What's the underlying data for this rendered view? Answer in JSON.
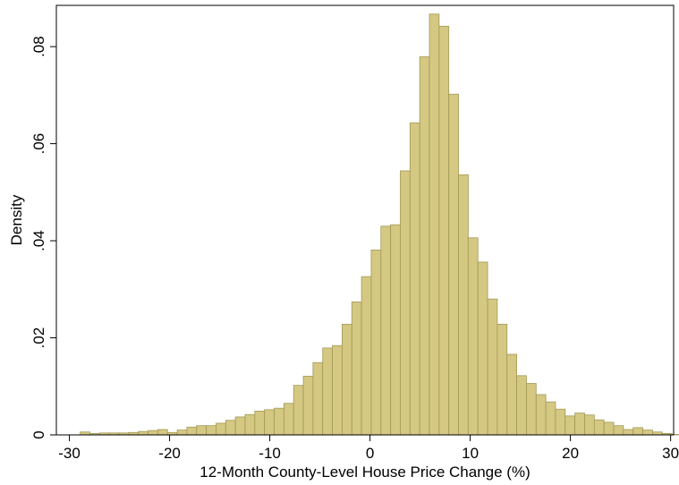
{
  "chart_data": {
    "type": "bar",
    "subtype": "histogram",
    "xlabel": "12-Month County-Level House Price Change (%)",
    "ylabel": "Density",
    "xlim": [
      -31.3,
      30.3
    ],
    "ylim": [
      0,
      0.0885
    ],
    "x_ticks": [
      -30,
      -20,
      -10,
      0,
      10,
      20,
      30
    ],
    "x_tick_labels": [
      "-30",
      "-20",
      "-10",
      "0",
      "10",
      "20",
      "30"
    ],
    "y_ticks": [
      0,
      0.02,
      0.04,
      0.06,
      0.08
    ],
    "y_tick_labels": [
      "0",
      ".02",
      ".04",
      ".06",
      ".08"
    ],
    "grid": false,
    "legend": "none",
    "bin_start": -28.92,
    "bin_width": 0.968,
    "values": [
      0.0006,
      0.0003,
      0.0004,
      0.0004,
      0.0004,
      0.0005,
      0.0007,
      0.0009,
      0.0011,
      0.0005,
      0.001,
      0.0016,
      0.0019,
      0.0019,
      0.0024,
      0.003,
      0.0037,
      0.0042,
      0.0049,
      0.0052,
      0.0055,
      0.0065,
      0.0102,
      0.0121,
      0.0149,
      0.0179,
      0.0184,
      0.0228,
      0.0274,
      0.0326,
      0.0381,
      0.043,
      0.0433,
      0.0544,
      0.0643,
      0.0779,
      0.0867,
      0.0842,
      0.0702,
      0.0536,
      0.0406,
      0.0356,
      0.028,
      0.0228,
      0.0166,
      0.0122,
      0.0106,
      0.0083,
      0.0068,
      0.0053,
      0.0039,
      0.0045,
      0.0041,
      0.0031,
      0.0026,
      0.0019,
      0.0011,
      0.0015,
      0.001,
      0.0006,
      0.0003,
      0.0001
    ],
    "colors": {
      "fill": "#d4c882",
      "stroke": "#a29957",
      "frame": "#000000"
    }
  }
}
